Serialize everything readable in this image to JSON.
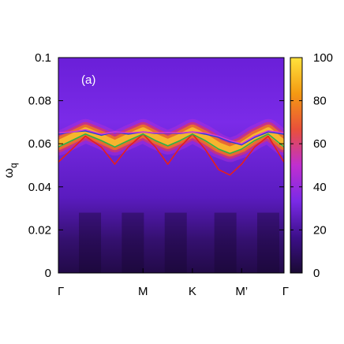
{
  "chart_data": {
    "type": "heatmap",
    "panel_label": "(a)",
    "ylabel": "ω_q",
    "ylabel_main": "ω",
    "ylabel_sub": "q",
    "ylim": [
      0,
      0.1
    ],
    "y_ticks": [
      {
        "value": 0,
        "label": "0"
      },
      {
        "value": 0.02,
        "label": "0.02"
      },
      {
        "value": 0.04,
        "label": "0.04"
      },
      {
        "value": 0.06,
        "label": "0.06"
      },
      {
        "value": 0.08,
        "label": "0.08"
      },
      {
        "value": 0.1,
        "label": "0.1"
      }
    ],
    "x_ticks": [
      {
        "label": "Γ",
        "pos": 0
      },
      {
        "label": "M",
        "pos": 0.375
      },
      {
        "label": "K",
        "pos": 0.594
      },
      {
        "label": "M’",
        "pos": 0.812
      },
      {
        "label": "Γ",
        "pos": 1
      }
    ],
    "colorbar": {
      "range": [
        0,
        100
      ],
      "ticks": [
        {
          "value": 0,
          "label": "0"
        },
        {
          "value": 20,
          "label": "20"
        },
        {
          "value": 40,
          "label": "40"
        },
        {
          "value": 60,
          "label": "60"
        },
        {
          "value": 80,
          "label": "80"
        },
        {
          "value": 100,
          "label": "100"
        }
      ],
      "colors": [
        "#1a0a33",
        "#3c0f8a",
        "#7a2ae6",
        "#c02fd0",
        "#e9503a",
        "#f49a12",
        "#ffe23c"
      ]
    },
    "series": [
      {
        "color": "#e6201a",
        "x": [
          0,
          0.06,
          0.12,
          0.19,
          0.25,
          0.31,
          0.375,
          0.43,
          0.485,
          0.54,
          0.594,
          0.65,
          0.71,
          0.76,
          0.812,
          0.87,
          0.93,
          1
        ],
        "y": [
          0.0515,
          0.0575,
          0.0635,
          0.0585,
          0.0505,
          0.0585,
          0.0645,
          0.0585,
          0.0505,
          0.0585,
          0.0645,
          0.0575,
          0.048,
          0.0455,
          0.0505,
          0.0585,
          0.0635,
          0.0515
        ]
      },
      {
        "color": "#2bb04a",
        "x": [
          0,
          0.06,
          0.12,
          0.19,
          0.25,
          0.31,
          0.375,
          0.43,
          0.485,
          0.54,
          0.594,
          0.65,
          0.71,
          0.76,
          0.812,
          0.87,
          0.93,
          1
        ],
        "y": [
          0.0585,
          0.0615,
          0.0645,
          0.0615,
          0.0585,
          0.0615,
          0.0645,
          0.0615,
          0.059,
          0.0615,
          0.0645,
          0.0615,
          0.0575,
          0.0555,
          0.0575,
          0.0615,
          0.0645,
          0.0585
        ]
      },
      {
        "color": "#1f3fd8",
        "x": [
          0,
          0.06,
          0.12,
          0.19,
          0.25,
          0.31,
          0.375,
          0.43,
          0.485,
          0.54,
          0.594,
          0.65,
          0.71,
          0.76,
          0.812,
          0.87,
          0.93,
          1
        ],
        "y": [
          0.0645,
          0.0655,
          0.066,
          0.064,
          0.0655,
          0.0645,
          0.0655,
          0.0648,
          0.065,
          0.0648,
          0.0655,
          0.0645,
          0.063,
          0.061,
          0.0595,
          0.063,
          0.0655,
          0.0645
        ]
      },
      {
        "color": "#d23bd6",
        "x": [
          0,
          0.06,
          0.12,
          0.19,
          0.25,
          0.31,
          0.375,
          0.43,
          0.485,
          0.54,
          0.594,
          0.65,
          0.71,
          0.76,
          0.812,
          0.87,
          0.93,
          1
        ],
        "y": [
          0.065,
          0.0655,
          0.0665,
          0.0645,
          0.0655,
          0.065,
          0.0655,
          0.065,
          0.0652,
          0.065,
          0.0655,
          0.065,
          0.0635,
          0.0615,
          0.06,
          0.0635,
          0.066,
          0.065
        ]
      }
    ]
  }
}
